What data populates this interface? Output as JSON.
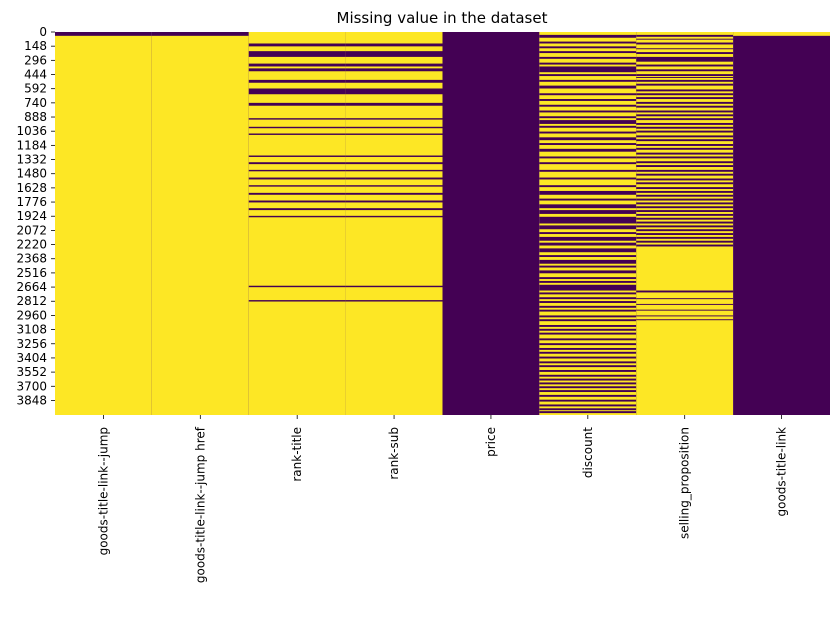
{
  "chart_data": {
    "type": "heatmap",
    "title": "Missing value in the dataset",
    "xlabel": "",
    "ylabel": "",
    "n_rows": 4000,
    "y_ticks": [
      0,
      148,
      296,
      444,
      592,
      740,
      888,
      1036,
      1184,
      1332,
      1480,
      1628,
      1776,
      1924,
      2072,
      2220,
      2368,
      2516,
      2664,
      2812,
      2960,
      3108,
      3256,
      3404,
      3552,
      3700,
      3848
    ],
    "columns": [
      "goods-title-link--jump",
      "goods-title-link--jump href",
      "rank-title",
      "rank-sub",
      "price",
      "discount",
      "selling_proposition",
      "goods-title-link"
    ],
    "missing_value": 1,
    "colors": {
      "missing": "#fde725",
      "present": "#440154"
    },
    "missing_segments": {
      "goods-title-link--jump": [
        [
          40,
          4000
        ]
      ],
      "goods-title-link--jump href": [
        [
          40,
          4000
        ]
      ],
      "rank-title": [
        [
          0,
          4000
        ]
      ],
      "rank-sub": [
        [
          0,
          4000
        ]
      ],
      "price": [],
      "discount": [
        [
          0,
          4000
        ]
      ],
      "selling_proposition": [
        [
          0,
          4000
        ]
      ],
      "goods-title-link": [
        [
          0,
          40
        ]
      ]
    },
    "present_segments": {
      "rank-title": [
        [
          120,
          150
        ],
        [
          200,
          260
        ],
        [
          330,
          360
        ],
        [
          380,
          410
        ],
        [
          500,
          530
        ],
        [
          590,
          650
        ],
        [
          740,
          770
        ],
        [
          900,
          915
        ],
        [
          990,
          1005
        ],
        [
          1060,
          1075
        ],
        [
          1290,
          1305
        ],
        [
          1360,
          1380
        ],
        [
          1440,
          1455
        ],
        [
          1520,
          1540
        ],
        [
          1600,
          1615
        ],
        [
          1680,
          1700
        ],
        [
          1760,
          1780
        ],
        [
          1840,
          1860
        ],
        [
          1920,
          1935
        ],
        [
          2650,
          2665
        ],
        [
          2800,
          2815
        ]
      ],
      "rank-sub": [
        [
          120,
          150
        ],
        [
          200,
          260
        ],
        [
          330,
          360
        ],
        [
          380,
          410
        ],
        [
          500,
          530
        ],
        [
          590,
          650
        ],
        [
          740,
          770
        ],
        [
          900,
          915
        ],
        [
          990,
          1005
        ],
        [
          1060,
          1075
        ],
        [
          1290,
          1305
        ],
        [
          1360,
          1380
        ],
        [
          1440,
          1455
        ],
        [
          1520,
          1540
        ],
        [
          1600,
          1615
        ],
        [
          1680,
          1700
        ],
        [
          1760,
          1780
        ],
        [
          1840,
          1860
        ],
        [
          1920,
          1935
        ],
        [
          2650,
          2665
        ],
        [
          2800,
          2815
        ]
      ],
      "discount": [
        [
          30,
          60
        ],
        [
          100,
          120
        ],
        [
          150,
          170
        ],
        [
          200,
          220
        ],
        [
          260,
          280
        ],
        [
          320,
          340
        ],
        [
          360,
          420
        ],
        [
          440,
          460
        ],
        [
          500,
          520
        ],
        [
          560,
          590
        ],
        [
          640,
          660
        ],
        [
          700,
          720
        ],
        [
          760,
          780
        ],
        [
          820,
          840
        ],
        [
          880,
          900
        ],
        [
          920,
          960
        ],
        [
          980,
          1000
        ],
        [
          1040,
          1060
        ],
        [
          1100,
          1130
        ],
        [
          1160,
          1180
        ],
        [
          1220,
          1250
        ],
        [
          1300,
          1320
        ],
        [
          1360,
          1380
        ],
        [
          1440,
          1460
        ],
        [
          1520,
          1540
        ],
        [
          1600,
          1620
        ],
        [
          1660,
          1700
        ],
        [
          1740,
          1760
        ],
        [
          1800,
          1840
        ],
        [
          1860,
          1900
        ],
        [
          1930,
          2000
        ],
        [
          2020,
          2060
        ],
        [
          2090,
          2110
        ],
        [
          2140,
          2180
        ],
        [
          2200,
          2230
        ],
        [
          2260,
          2300
        ],
        [
          2330,
          2350
        ],
        [
          2380,
          2420
        ],
        [
          2440,
          2460
        ],
        [
          2490,
          2520
        ],
        [
          2560,
          2580
        ],
        [
          2600,
          2620
        ],
        [
          2640,
          2700
        ],
        [
          2720,
          2740
        ],
        [
          2770,
          2790
        ],
        [
          2810,
          2830
        ],
        [
          2860,
          2880
        ],
        [
          2900,
          2920
        ],
        [
          2960,
          2980
        ],
        [
          3000,
          3020
        ],
        [
          3060,
          3080
        ],
        [
          3100,
          3120
        ],
        [
          3140,
          3160
        ],
        [
          3200,
          3220
        ],
        [
          3250,
          3270
        ],
        [
          3300,
          3320
        ],
        [
          3340,
          3360
        ],
        [
          3390,
          3410
        ],
        [
          3440,
          3460
        ],
        [
          3480,
          3500
        ],
        [
          3530,
          3550
        ],
        [
          3580,
          3600
        ],
        [
          3620,
          3640
        ],
        [
          3660,
          3680
        ],
        [
          3700,
          3720
        ],
        [
          3740,
          3760
        ],
        [
          3790,
          3810
        ],
        [
          3840,
          3860
        ],
        [
          3890,
          3910
        ],
        [
          3930,
          3950
        ],
        [
          3960,
          3980
        ]
      ],
      "selling_proposition": [
        [
          30,
          50
        ],
        [
          70,
          80
        ],
        [
          110,
          130
        ],
        [
          170,
          180
        ],
        [
          210,
          230
        ],
        [
          260,
          310
        ],
        [
          340,
          360
        ],
        [
          390,
          410
        ],
        [
          440,
          460
        ],
        [
          470,
          480
        ],
        [
          500,
          520
        ],
        [
          540,
          560
        ],
        [
          600,
          620
        ],
        [
          640,
          660
        ],
        [
          680,
          700
        ],
        [
          730,
          750
        ],
        [
          770,
          790
        ],
        [
          820,
          840
        ],
        [
          860,
          880
        ],
        [
          900,
          920
        ],
        [
          950,
          970
        ],
        [
          990,
          1010
        ],
        [
          1030,
          1050
        ],
        [
          1080,
          1100
        ],
        [
          1120,
          1140
        ],
        [
          1170,
          1190
        ],
        [
          1210,
          1230
        ],
        [
          1260,
          1280
        ],
        [
          1300,
          1320
        ],
        [
          1350,
          1370
        ],
        [
          1390,
          1410
        ],
        [
          1440,
          1460
        ],
        [
          1480,
          1500
        ],
        [
          1530,
          1550
        ],
        [
          1570,
          1590
        ],
        [
          1620,
          1640
        ],
        [
          1660,
          1680
        ],
        [
          1700,
          1720
        ],
        [
          1740,
          1760
        ],
        [
          1780,
          1800
        ],
        [
          1820,
          1840
        ],
        [
          1860,
          1880
        ],
        [
          1900,
          1920
        ],
        [
          1940,
          1960
        ],
        [
          1980,
          2000
        ],
        [
          2020,
          2040
        ],
        [
          2060,
          2080
        ],
        [
          2100,
          2120
        ],
        [
          2140,
          2160
        ],
        [
          2180,
          2200
        ],
        [
          2220,
          2240
        ],
        [
          2700,
          2720
        ],
        [
          2780,
          2790
        ],
        [
          2840,
          2850
        ],
        [
          2900,
          2910
        ],
        [
          2960,
          2970
        ],
        [
          3000,
          3010
        ]
      ]
    }
  }
}
